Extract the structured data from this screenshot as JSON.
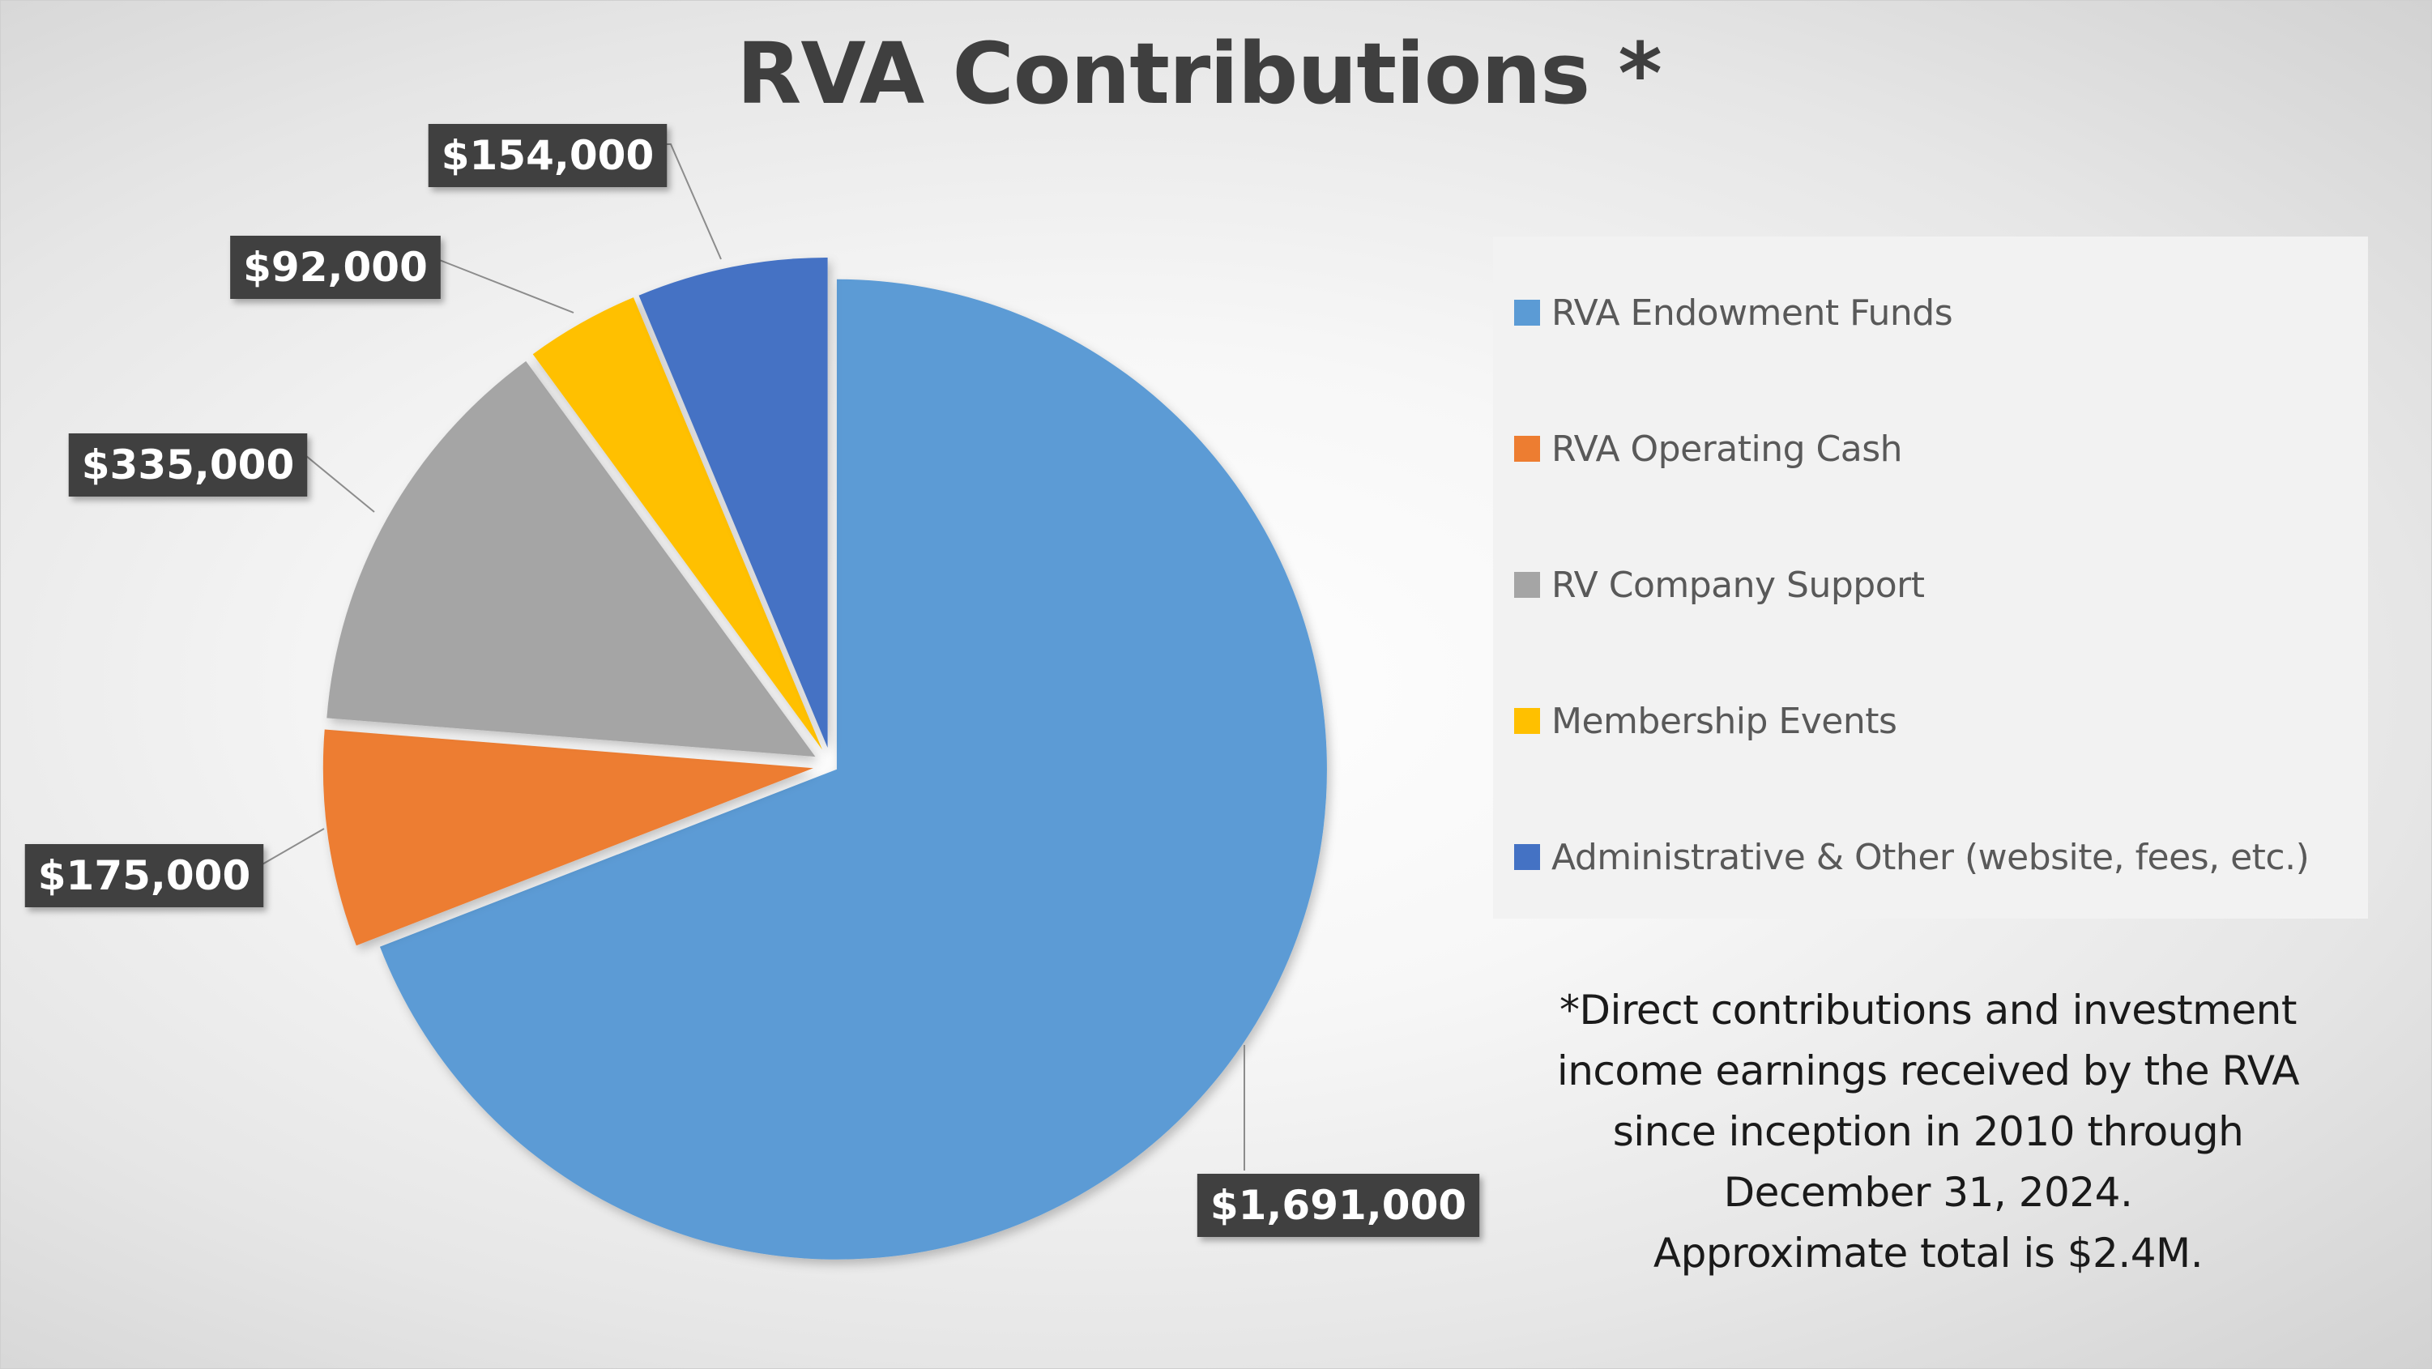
{
  "chart_data": {
    "type": "pie",
    "title": "RVA Contributions *",
    "categories": [
      "RVA Endowment Funds",
      "RVA Operating Cash",
      "RV Company Support",
      "Membership Events",
      "Administrative & Other (website, fees, etc.)"
    ],
    "values": [
      1691000,
      175000,
      335000,
      92000,
      154000
    ],
    "data_labels": [
      "$1,691,000",
      "$175,000",
      "$335,000",
      "$92,000",
      "$154,000"
    ],
    "colors": [
      "#5B9BD5",
      "#ED7D31",
      "#A5A5A5",
      "#FFC000",
      "#4472C4"
    ],
    "legend_position": "right",
    "exploded": true
  },
  "footnote": {
    "lines": [
      "*Direct contributions and investment",
      "income earnings received by the RVA",
      "since inception in 2010 through",
      "December 31, 2024.",
      "Approximate total is $2.4M."
    ]
  }
}
